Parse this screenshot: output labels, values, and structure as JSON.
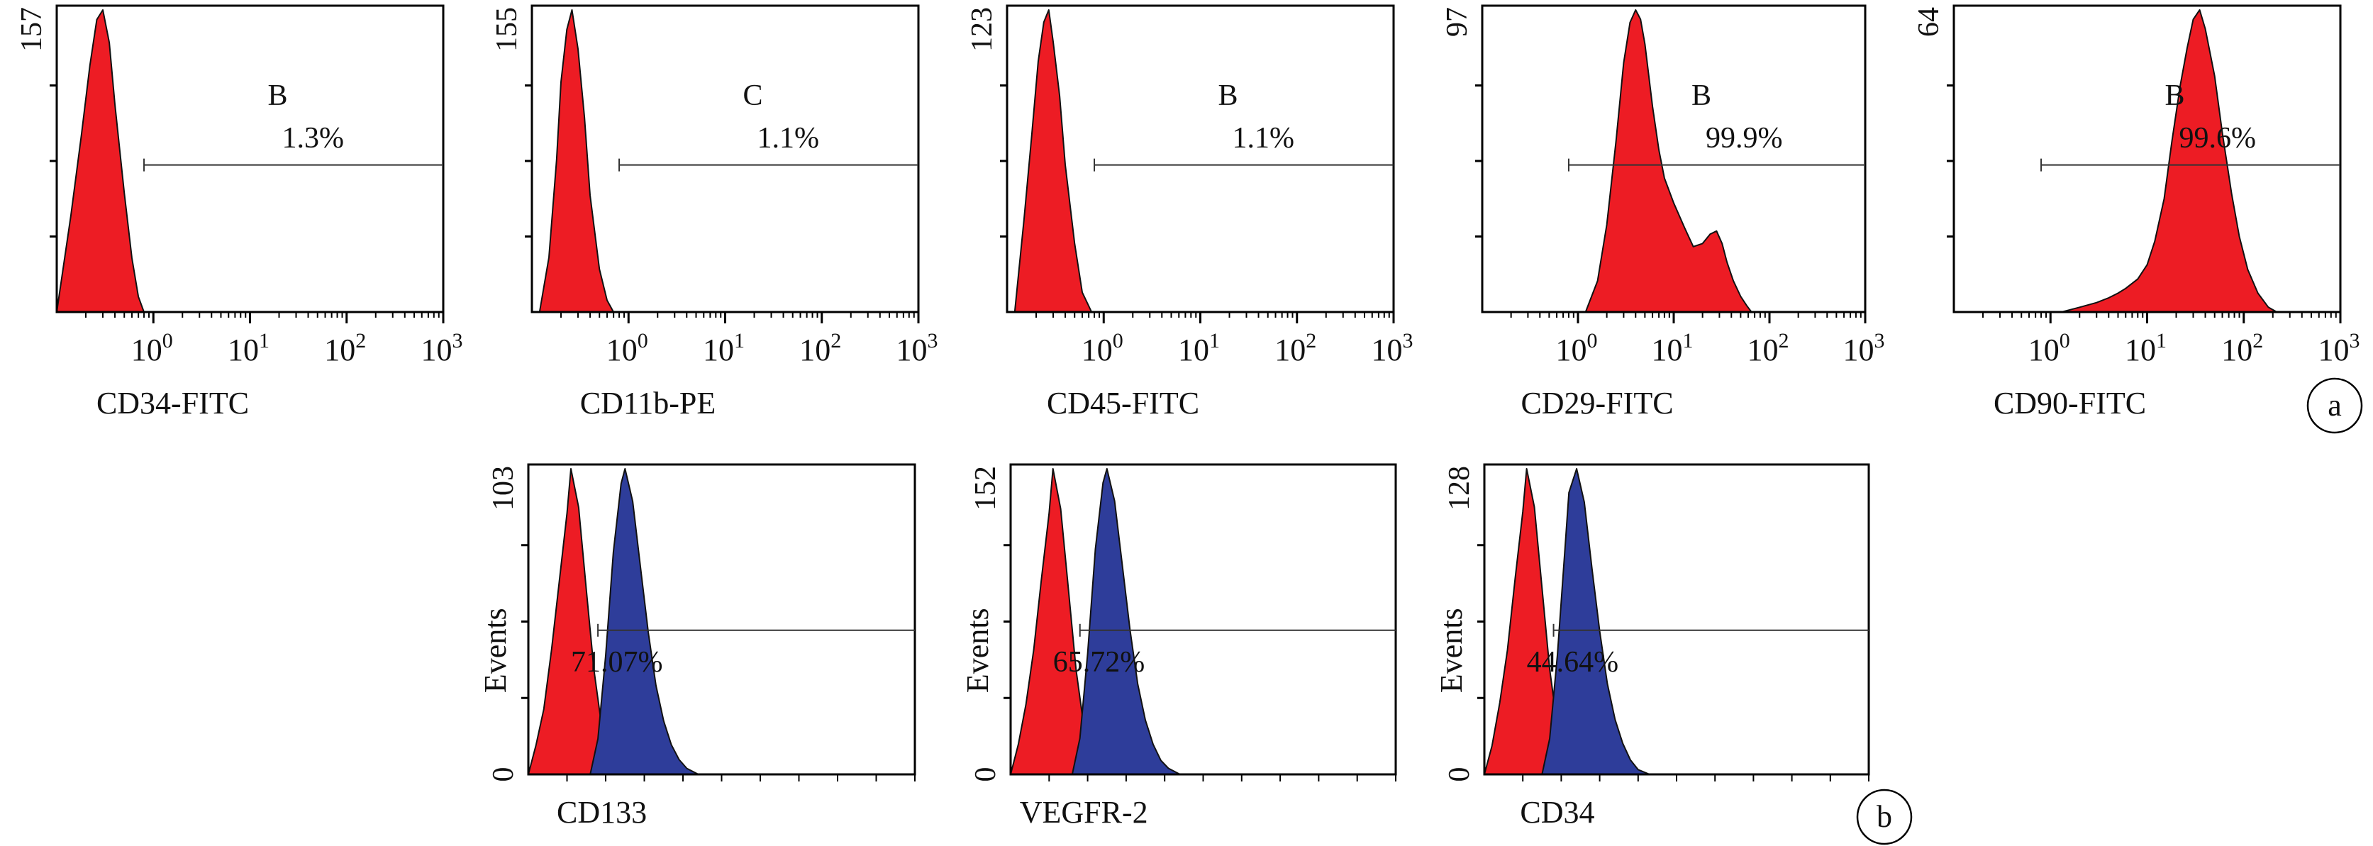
{
  "colors": {
    "control": "#ed1c24",
    "stained": "#2e3d9a",
    "frame": "#000000",
    "gate": "#333333"
  },
  "chart_data": [
    {
      "type": "area",
      "panel": "a",
      "xlabel": "CD34-FITC",
      "ymax_label": "157",
      "xscale": "log",
      "xlim": [
        0.1,
        1000
      ],
      "xticks": [
        {
          "base": "10",
          "exp": "0"
        },
        {
          "base": "10",
          "exp": "1"
        },
        {
          "base": "10",
          "exp": "2"
        },
        {
          "base": "10",
          "exp": "3"
        }
      ],
      "gate_label": "B",
      "gate_value": "1.3%",
      "gate_range": [
        0.8,
        1000
      ],
      "series": [
        {
          "role": "control",
          "x": [
            0.1,
            0.14,
            0.18,
            0.22,
            0.26,
            0.3,
            0.35,
            0.4,
            0.5,
            0.6,
            0.7,
            0.8
          ],
          "y": [
            0,
            50,
            92,
            128,
            152,
            157,
            140,
            108,
            62,
            28,
            8,
            0
          ]
        }
      ]
    },
    {
      "type": "area",
      "panel": "a",
      "xlabel": "CD11b-PE",
      "ymax_label": "155",
      "xscale": "log",
      "xlim": [
        0.1,
        1000
      ],
      "xticks": [
        {
          "base": "10",
          "exp": "0"
        },
        {
          "base": "10",
          "exp": "1"
        },
        {
          "base": "10",
          "exp": "2"
        },
        {
          "base": "10",
          "exp": "3"
        }
      ],
      "gate_label": "C",
      "gate_value": "1.1%",
      "gate_range": [
        0.8,
        1000
      ],
      "series": [
        {
          "role": "control",
          "x": [
            0.12,
            0.15,
            0.18,
            0.2,
            0.23,
            0.26,
            0.3,
            0.35,
            0.4,
            0.5,
            0.6,
            0.7
          ],
          "y": [
            0,
            28,
            78,
            118,
            145,
            155,
            135,
            100,
            60,
            22,
            6,
            0
          ]
        }
      ]
    },
    {
      "type": "area",
      "panel": "a",
      "xlabel": "CD45-FITC",
      "ymax_label": "123",
      "xscale": "log",
      "xlim": [
        0.1,
        1000
      ],
      "xticks": [
        {
          "base": "10",
          "exp": "0"
        },
        {
          "base": "10",
          "exp": "1"
        },
        {
          "base": "10",
          "exp": "2"
        },
        {
          "base": "10",
          "exp": "3"
        }
      ],
      "gate_label": "B",
      "gate_value": "1.1%",
      "gate_range": [
        0.8,
        1000
      ],
      "series": [
        {
          "role": "control",
          "x": [
            0.12,
            0.15,
            0.18,
            0.21,
            0.24,
            0.27,
            0.3,
            0.35,
            0.4,
            0.5,
            0.6,
            0.75
          ],
          "y": [
            0,
            38,
            72,
            102,
            118,
            123,
            110,
            88,
            60,
            28,
            8,
            0
          ]
        }
      ]
    },
    {
      "type": "area",
      "panel": "a",
      "xlabel": "CD29-FITC",
      "ymax_label": "97",
      "xscale": "log",
      "xlim": [
        0.1,
        1000
      ],
      "xticks": [
        {
          "base": "10",
          "exp": "0"
        },
        {
          "base": "10",
          "exp": "1"
        },
        {
          "base": "10",
          "exp": "2"
        },
        {
          "base": "10",
          "exp": "3"
        }
      ],
      "gate_label": "B",
      "gate_value": "99.9%",
      "gate_range": [
        0.8,
        1000
      ],
      "series": [
        {
          "role": "control",
          "x": [
            1.2,
            1.6,
            2,
            2.5,
            3,
            3.5,
            4,
            4.5,
            5,
            6,
            7,
            8,
            10,
            13,
            16,
            20,
            24,
            28,
            32,
            36,
            42,
            50,
            58,
            65
          ],
          "y": [
            0,
            10,
            28,
            55,
            80,
            93,
            97,
            94,
            86,
            66,
            52,
            43,
            35,
            27,
            21,
            22,
            25,
            26,
            22,
            16,
            10,
            5,
            2,
            0
          ]
        }
      ]
    },
    {
      "type": "area",
      "panel": "a",
      "xlabel": "CD90-FITC",
      "ymax_label": "64",
      "xscale": "log",
      "xlim": [
        0.1,
        1000
      ],
      "xticks": [
        {
          "base": "10",
          "exp": "0"
        },
        {
          "base": "10",
          "exp": "1"
        },
        {
          "base": "10",
          "exp": "2"
        },
        {
          "base": "10",
          "exp": "3"
        }
      ],
      "gate_label": "B",
      "gate_value": "99.6%",
      "gate_range": [
        0.8,
        1000
      ],
      "series": [
        {
          "role": "control",
          "x": [
            1.3,
            2,
            3,
            4,
            5,
            6,
            8,
            10,
            12,
            15,
            18,
            22,
            26,
            30,
            35,
            40,
            50,
            60,
            75,
            90,
            110,
            140,
            180,
            220
          ],
          "y": [
            0,
            1,
            2,
            3,
            4,
            5,
            7,
            10,
            15,
            24,
            36,
            48,
            56,
            62,
            64,
            60,
            50,
            38,
            25,
            16,
            9,
            4,
            1,
            0
          ]
        }
      ]
    },
    {
      "type": "area",
      "panel": "b",
      "ylabel": "Events",
      "xlabel": "CD133",
      "ymax_label": "103",
      "ymin_label": "0",
      "gate_value": "71.07%",
      "xlim": [
        0,
        1
      ],
      "gate_range": [
        0.18,
        1
      ],
      "series": [
        {
          "role": "control",
          "x": [
            0,
            0.02,
            0.04,
            0.06,
            0.08,
            0.1,
            0.11,
            0.13,
            0.15,
            0.17,
            0.19,
            0.21,
            0.23
          ],
          "y": [
            0,
            10,
            22,
            42,
            65,
            88,
            103,
            90,
            62,
            35,
            16,
            5,
            0
          ]
        },
        {
          "role": "stained",
          "x": [
            0.16,
            0.18,
            0.2,
            0.22,
            0.24,
            0.25,
            0.27,
            0.29,
            0.31,
            0.33,
            0.35,
            0.37,
            0.39,
            0.41,
            0.44
          ],
          "y": [
            0,
            12,
            40,
            75,
            98,
            103,
            92,
            70,
            48,
            30,
            18,
            10,
            5,
            2,
            0
          ]
        }
      ]
    },
    {
      "type": "area",
      "panel": "b",
      "ylabel": "Events",
      "xlabel": "VEGFR-2",
      "ymax_label": "152",
      "ymin_label": "0",
      "gate_value": "65.72%",
      "xlim": [
        0,
        1
      ],
      "gate_range": [
        0.18,
        1
      ],
      "series": [
        {
          "role": "control",
          "x": [
            0,
            0.02,
            0.04,
            0.06,
            0.08,
            0.1,
            0.11,
            0.13,
            0.15,
            0.17,
            0.19,
            0.21,
            0.23
          ],
          "y": [
            0,
            15,
            35,
            62,
            97,
            130,
            152,
            132,
            92,
            52,
            24,
            8,
            0
          ]
        },
        {
          "role": "stained",
          "x": [
            0.16,
            0.18,
            0.2,
            0.22,
            0.24,
            0.25,
            0.27,
            0.29,
            0.31,
            0.33,
            0.35,
            0.37,
            0.39,
            0.41,
            0.44
          ],
          "y": [
            0,
            18,
            60,
            112,
            145,
            152,
            136,
            104,
            72,
            45,
            27,
            15,
            7,
            3,
            0
          ]
        }
      ]
    },
    {
      "type": "area",
      "panel": "b",
      "ylabel": "Events",
      "xlabel": "CD34",
      "ymax_label": "128",
      "ymin_label": "0",
      "gate_value": "44.64%",
      "xlim": [
        0,
        1
      ],
      "gate_range": [
        0.18,
        1
      ],
      "series": [
        {
          "role": "control",
          "x": [
            0,
            0.02,
            0.04,
            0.06,
            0.08,
            0.1,
            0.11,
            0.13,
            0.15,
            0.17,
            0.19,
            0.21,
            0.23
          ],
          "y": [
            0,
            12,
            30,
            52,
            82,
            110,
            128,
            112,
            78,
            44,
            20,
            6,
            0
          ]
        },
        {
          "role": "stained",
          "x": [
            0.15,
            0.17,
            0.19,
            0.21,
            0.22,
            0.24,
            0.26,
            0.28,
            0.3,
            0.32,
            0.34,
            0.36,
            0.38,
            0.4,
            0.43
          ],
          "y": [
            0,
            15,
            50,
            95,
            118,
            128,
            114,
            86,
            60,
            38,
            23,
            13,
            6,
            2,
            0
          ]
        }
      ]
    }
  ],
  "panel_labels": [
    "a",
    "b"
  ]
}
